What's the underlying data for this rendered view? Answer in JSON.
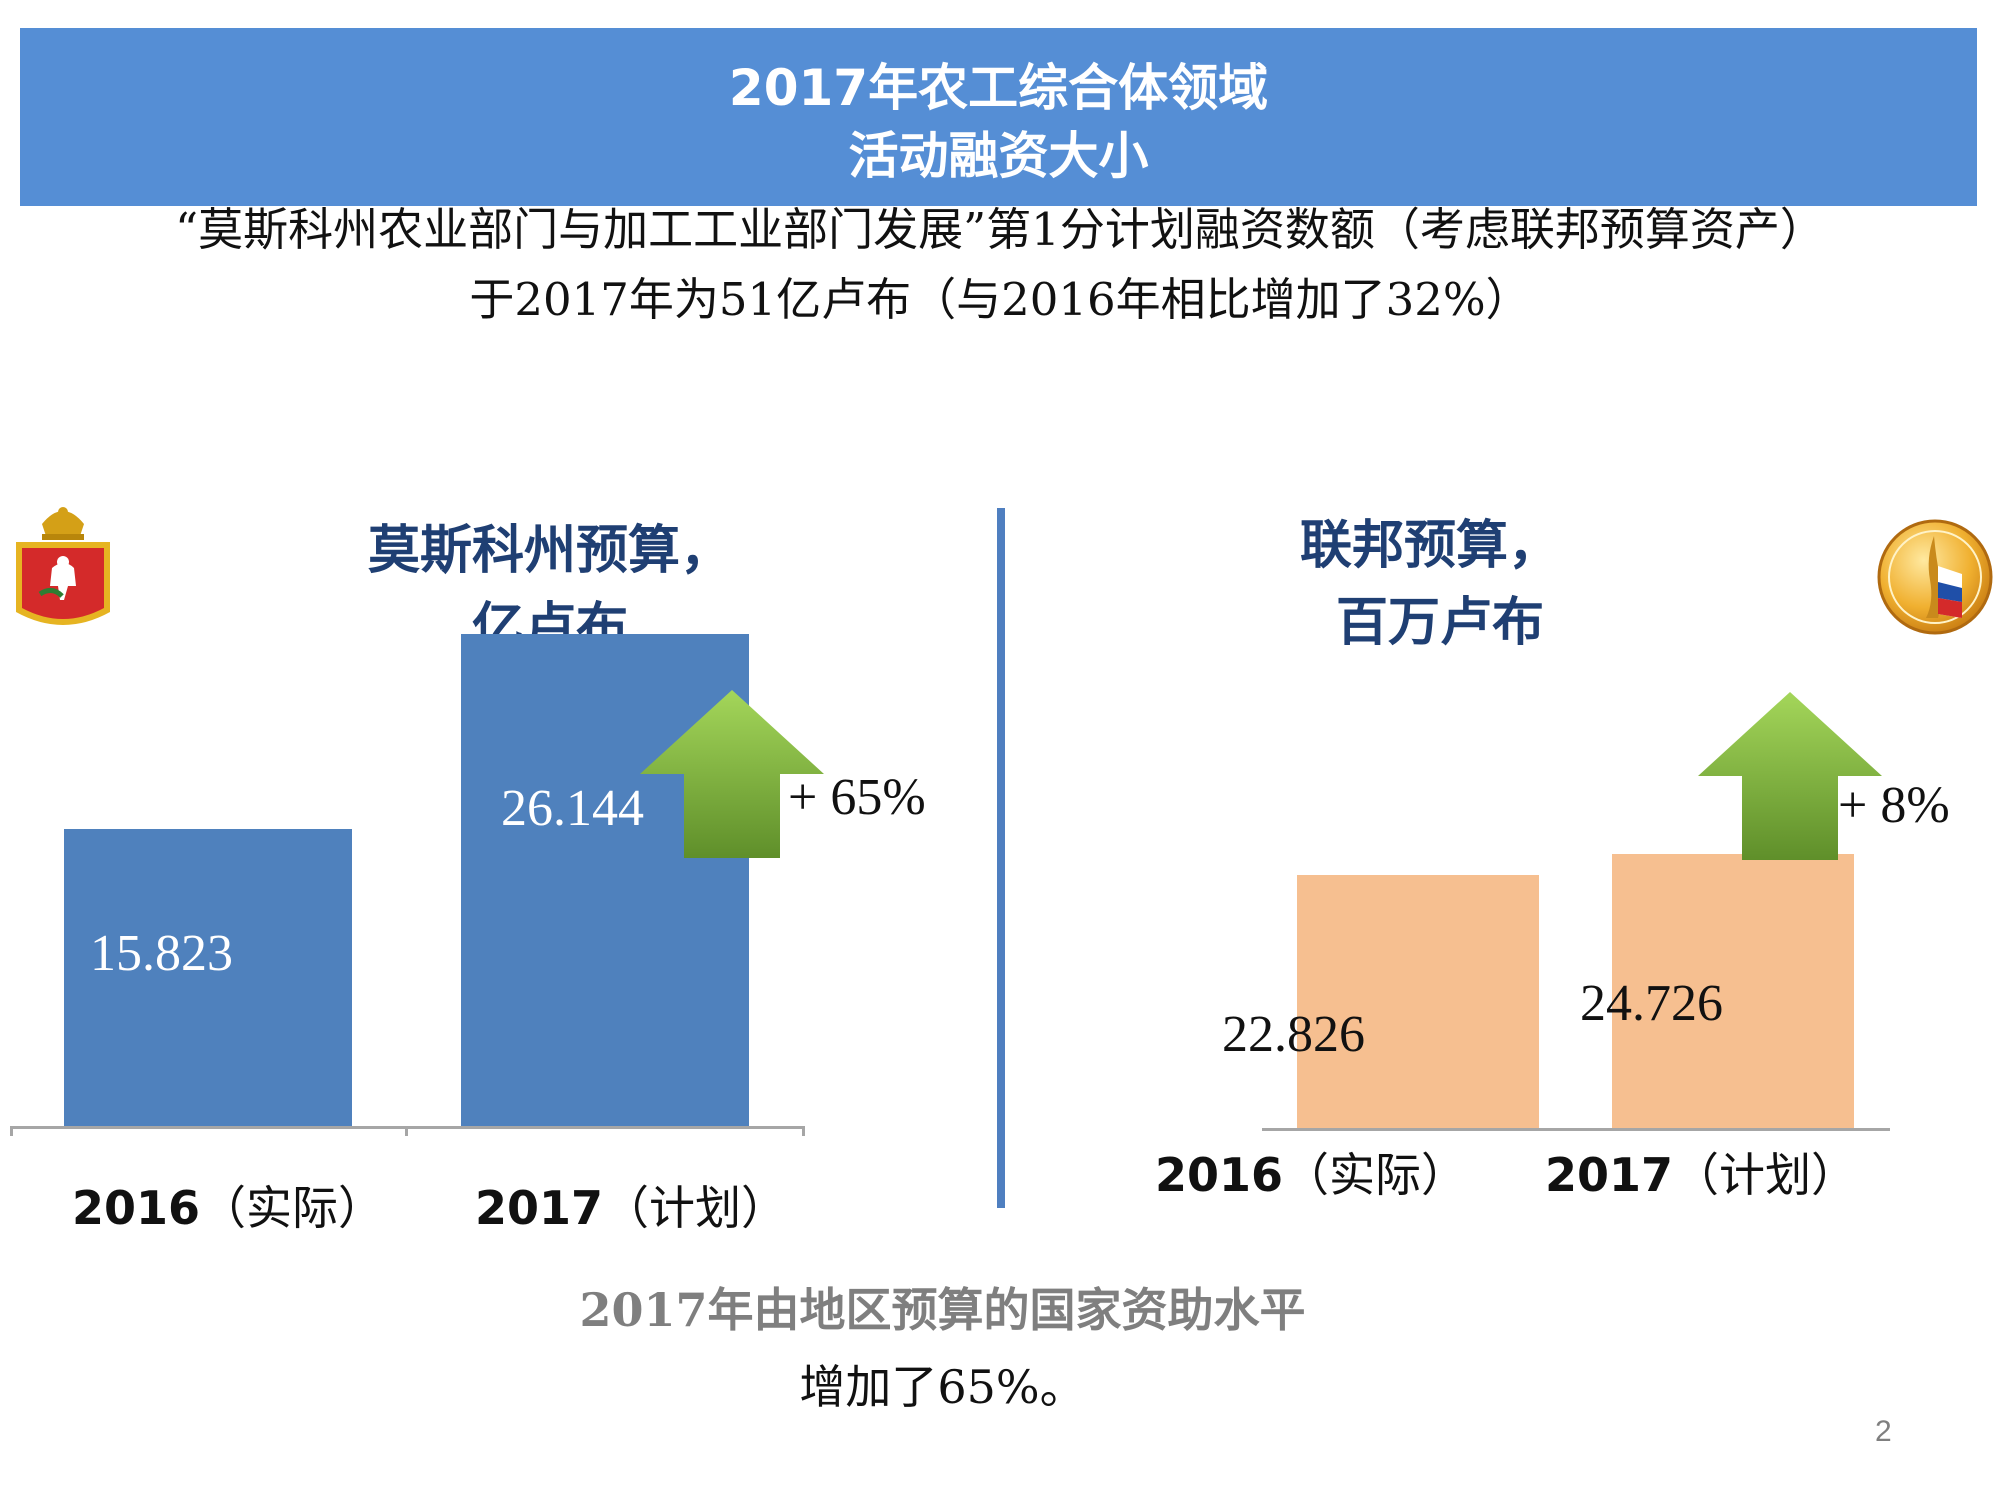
{
  "header": {
    "title_line1": "2017年农工综合体领域",
    "title_line2": "活动融资大小"
  },
  "subtitle": {
    "line1": "“莫斯科州农业部门与加工工业部门发展”第1分计划融资数额（考虑联邦预算资产）",
    "line2": "于2017年为51亿卢布（与2016年相比增加了32%）"
  },
  "colors": {
    "banner": "#558ed5",
    "moscow_bar": "#4f81bd",
    "federal_bar": "#f6bf90",
    "panel_title": "#1f3f73",
    "arrow_green": "#6ea33a"
  },
  "icons": {
    "left_logo": "moscow-oblast-coat-of-arms-icon",
    "right_logo": "ministry-of-agriculture-emblem-icon",
    "growth": "up-arrow-icon"
  },
  "chart_data": [
    {
      "type": "bar",
      "title": "莫斯科州预算，",
      "subtitle": "亿卢布",
      "categories": [
        "2016（实际）",
        "2017（计划）"
      ],
      "values": [
        15.823,
        26.144
      ],
      "value_labels": [
        "15.823",
        "26.144"
      ],
      "change_label": "+ 65%",
      "ylim": [
        0,
        30
      ],
      "grid": false,
      "legend": "none"
    },
    {
      "type": "bar",
      "title": "联邦预算，",
      "subtitle": "百万卢布",
      "categories": [
        "2016（实际）",
        "2017（计划）"
      ],
      "values": [
        22.826,
        24.726
      ],
      "value_labels": [
        "22.826",
        "24.726"
      ],
      "change_label": "+ 8%",
      "ylim": [
        0,
        30
      ],
      "grid": false,
      "legend": "none"
    }
  ],
  "footer": {
    "line1": "2017年由地区预算的国家资助水平",
    "line2": "增加了65%。"
  },
  "page_number": "2"
}
